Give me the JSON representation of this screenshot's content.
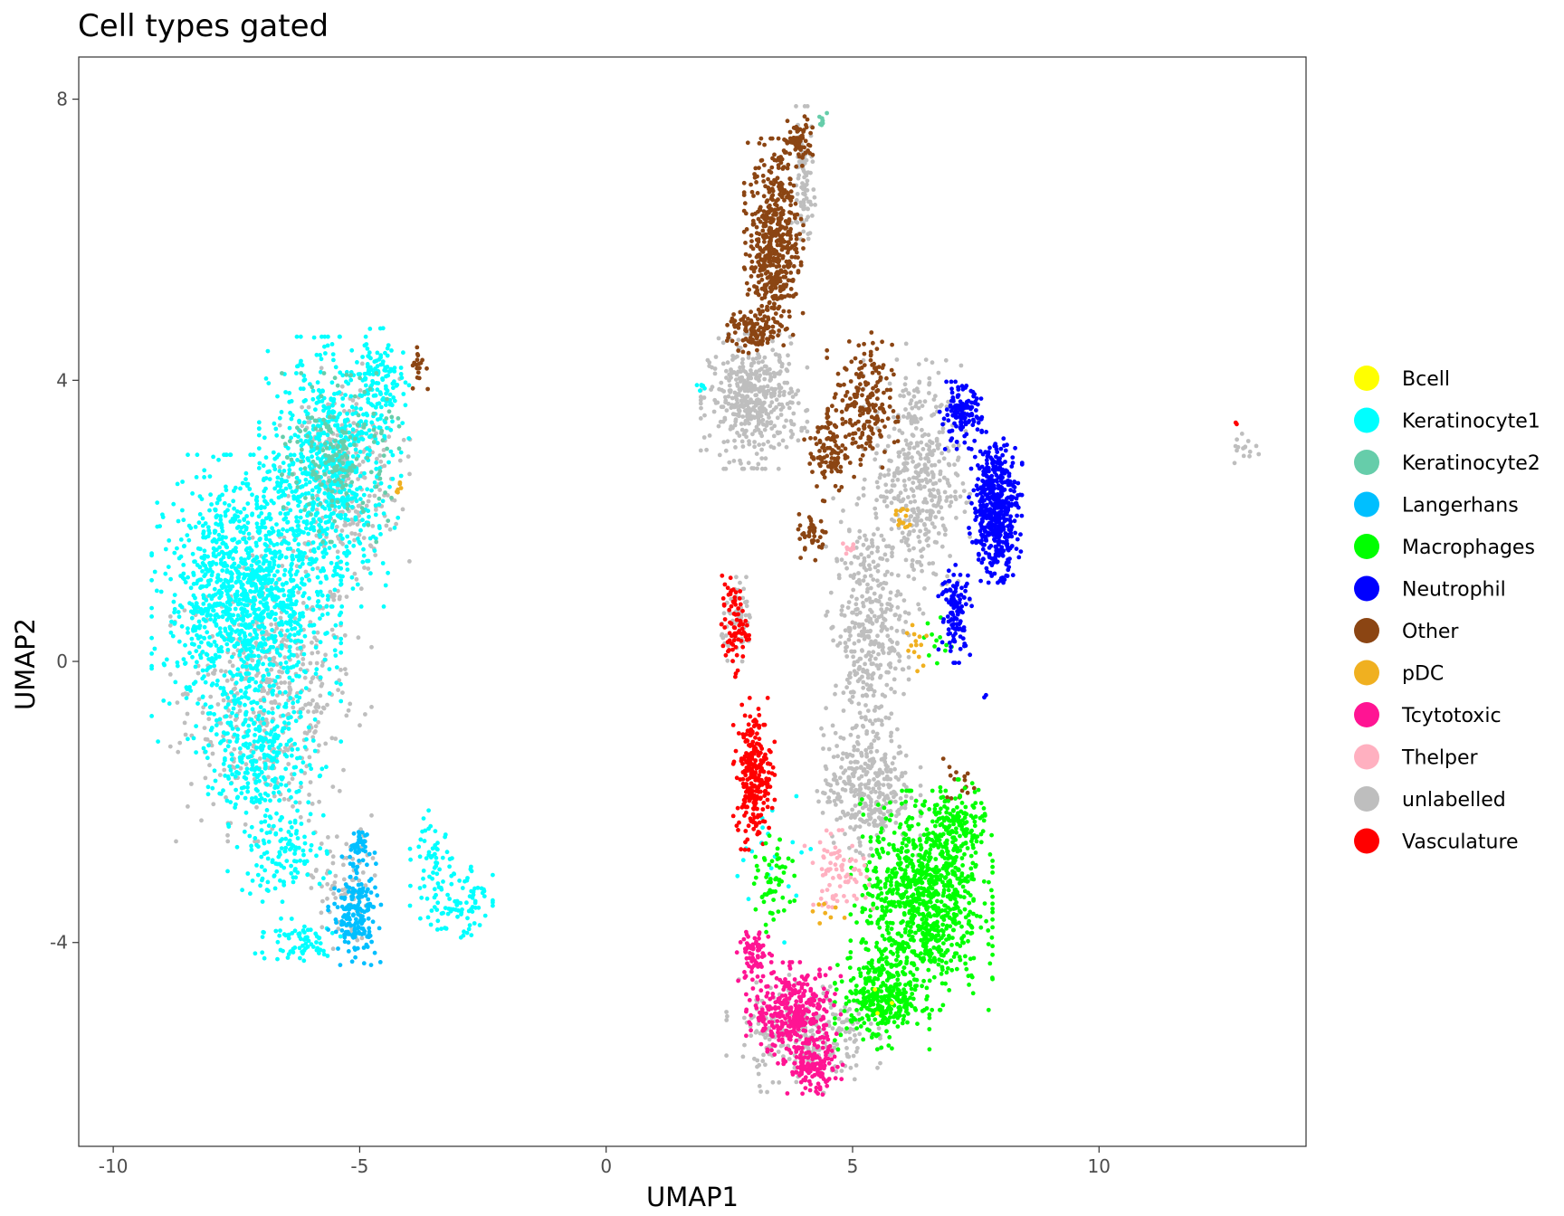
{
  "chart_data": {
    "type": "scatter",
    "title": "Cell types gated",
    "xlabel": "UMAP1",
    "ylabel": "UMAP2",
    "xlim": [
      -10.7,
      14.2
    ],
    "ylim": [
      -6.9,
      8.6
    ],
    "x_ticks": [
      -10,
      -5,
      0,
      5,
      10
    ],
    "y_ticks": [
      -4,
      0,
      4,
      8
    ],
    "x_tick_labels": [
      "-10",
      "-5",
      "0",
      "5",
      "10"
    ],
    "y_tick_labels": [
      "-4",
      "0",
      "4",
      "8"
    ],
    "grid": false,
    "legend_position": "right",
    "colors": {
      "Bcell": "#FFFF00",
      "Keratinocyte1": "#00FFFF",
      "Keratinocyte2": "#66CDAA",
      "Langerhans": "#00BFFF",
      "Macrophages": "#00FF00",
      "Neutrophil": "#0000FF",
      "Other": "#8B4513",
      "pDC": "#F0B020",
      "Tcytotoxic": "#FF1493",
      "Thelper": "#FFB0C0",
      "unlabelled": "#BEBEBE",
      "Vasculature": "#FF0000"
    },
    "series": [
      {
        "name": "Bcell",
        "regions": [
          {
            "cx": 5.5,
            "cy": -4.8,
            "rx": 0.4,
            "ry": 0.3,
            "n": 3
          }
        ]
      },
      {
        "name": "Keratinocyte1",
        "regions": [
          {
            "cx": -7.3,
            "cy": 0.9,
            "rx": 1.6,
            "ry": 1.7,
            "n": 1300
          },
          {
            "cx": -5.6,
            "cy": 2.7,
            "rx": 1.2,
            "ry": 1.6,
            "n": 700
          },
          {
            "cx": -4.6,
            "cy": 3.9,
            "rx": 0.5,
            "ry": 0.7,
            "n": 130
          },
          {
            "cx": -7.0,
            "cy": -1.4,
            "rx": 1.1,
            "ry": 0.8,
            "n": 260
          },
          {
            "cx": -6.6,
            "cy": -2.7,
            "rx": 0.9,
            "ry": 0.6,
            "n": 130
          },
          {
            "cx": -3.5,
            "cy": -2.9,
            "rx": 0.4,
            "ry": 0.9,
            "n": 70
          },
          {
            "cx": -2.9,
            "cy": -3.4,
            "rx": 0.5,
            "ry": 0.6,
            "n": 70
          },
          {
            "cx": -6.3,
            "cy": -4.0,
            "rx": 0.9,
            "ry": 0.3,
            "n": 70
          },
          {
            "cx": 1.9,
            "cy": 3.9,
            "rx": 0.1,
            "ry": 0.1,
            "n": 6
          },
          {
            "cx": 3.4,
            "cy": -2.8,
            "rx": 0.7,
            "ry": 1.0,
            "n": 20
          }
        ]
      },
      {
        "name": "Keratinocyte2",
        "regions": [
          {
            "cx": -5.4,
            "cy": 2.9,
            "rx": 1.0,
            "ry": 1.0,
            "n": 180
          },
          {
            "cx": 4.4,
            "cy": 7.7,
            "rx": 0.1,
            "ry": 0.15,
            "n": 8
          }
        ]
      },
      {
        "name": "Langerhans",
        "regions": [
          {
            "cx": -5.1,
            "cy": -3.6,
            "rx": 0.45,
            "ry": 0.6,
            "n": 170
          },
          {
            "cx": -5.0,
            "cy": -2.7,
            "rx": 0.3,
            "ry": 0.4,
            "n": 40
          }
        ]
      },
      {
        "name": "Macrophages",
        "regions": [
          {
            "cx": 6.4,
            "cy": -3.4,
            "rx": 1.2,
            "ry": 1.3,
            "n": 900
          },
          {
            "cx": 5.6,
            "cy": -4.8,
            "rx": 0.8,
            "ry": 0.6,
            "n": 320
          },
          {
            "cx": 7.1,
            "cy": -2.4,
            "rx": 0.6,
            "ry": 0.6,
            "n": 160
          },
          {
            "cx": 3.4,
            "cy": -3.2,
            "rx": 0.35,
            "ry": 0.6,
            "n": 60
          },
          {
            "cx": 6.7,
            "cy": 0.2,
            "rx": 0.3,
            "ry": 0.4,
            "n": 12
          }
        ]
      },
      {
        "name": "Neutrophil",
        "regions": [
          {
            "cx": 7.9,
            "cy": 2.2,
            "rx": 0.45,
            "ry": 0.9,
            "n": 500
          },
          {
            "cx": 7.2,
            "cy": 3.5,
            "rx": 0.4,
            "ry": 0.4,
            "n": 130
          },
          {
            "cx": 7.1,
            "cy": 0.7,
            "rx": 0.3,
            "ry": 0.6,
            "n": 120
          },
          {
            "cx": 7.7,
            "cy": -0.5,
            "rx": 0.05,
            "ry": 0.05,
            "n": 2
          }
        ]
      },
      {
        "name": "Other",
        "regions": [
          {
            "cx": 3.4,
            "cy": 6.0,
            "rx": 0.5,
            "ry": 1.2,
            "n": 500
          },
          {
            "cx": 3.9,
            "cy": 7.4,
            "rx": 0.3,
            "ry": 0.3,
            "n": 70
          },
          {
            "cx": 3.0,
            "cy": 4.7,
            "rx": 0.5,
            "ry": 0.3,
            "n": 110
          },
          {
            "cx": 5.2,
            "cy": 3.6,
            "rx": 0.6,
            "ry": 0.9,
            "n": 200
          },
          {
            "cx": 4.5,
            "cy": 3.0,
            "rx": 0.4,
            "ry": 0.6,
            "n": 90
          },
          {
            "cx": 4.2,
            "cy": 1.8,
            "rx": 0.3,
            "ry": 0.3,
            "n": 40
          },
          {
            "cx": -3.8,
            "cy": 4.2,
            "rx": 0.15,
            "ry": 0.3,
            "n": 18
          },
          {
            "cx": 7.2,
            "cy": -1.7,
            "rx": 0.3,
            "ry": 0.3,
            "n": 15
          }
        ]
      },
      {
        "name": "pDC",
        "regions": [
          {
            "cx": 6.0,
            "cy": 2.0,
            "rx": 0.15,
            "ry": 0.2,
            "n": 14
          },
          {
            "cx": 6.3,
            "cy": 0.3,
            "rx": 0.2,
            "ry": 0.4,
            "n": 14
          },
          {
            "cx": -4.2,
            "cy": 2.5,
            "rx": 0.1,
            "ry": 0.1,
            "n": 6
          },
          {
            "cx": 4.5,
            "cy": -3.6,
            "rx": 0.3,
            "ry": 0.3,
            "n": 8
          }
        ]
      },
      {
        "name": "Tcytotoxic",
        "regions": [
          {
            "cx": 3.8,
            "cy": -5.0,
            "rx": 0.8,
            "ry": 0.6,
            "n": 360
          },
          {
            "cx": 4.2,
            "cy": -5.8,
            "rx": 0.5,
            "ry": 0.35,
            "n": 130
          },
          {
            "cx": 3.0,
            "cy": -4.2,
            "rx": 0.3,
            "ry": 0.4,
            "n": 70
          }
        ]
      },
      {
        "name": "Thelper",
        "regions": [
          {
            "cx": 4.7,
            "cy": -3.0,
            "rx": 0.6,
            "ry": 0.5,
            "n": 80
          },
          {
            "cx": 5.0,
            "cy": 1.6,
            "rx": 0.3,
            "ry": 0.1,
            "n": 10
          }
        ]
      },
      {
        "name": "unlabelled",
        "regions": [
          {
            "cx": -6.8,
            "cy": -0.4,
            "rx": 1.7,
            "ry": 1.8,
            "n": 500
          },
          {
            "cx": -5.3,
            "cy": 2.6,
            "rx": 1.1,
            "ry": 1.4,
            "n": 260
          },
          {
            "cx": -5.4,
            "cy": -3.2,
            "rx": 0.6,
            "ry": 0.8,
            "n": 80
          },
          {
            "cx": 3.0,
            "cy": 3.7,
            "rx": 0.9,
            "ry": 0.8,
            "n": 450
          },
          {
            "cx": 4.0,
            "cy": 6.7,
            "rx": 0.2,
            "ry": 1.0,
            "n": 90
          },
          {
            "cx": 6.3,
            "cy": 2.6,
            "rx": 0.9,
            "ry": 1.6,
            "n": 450
          },
          {
            "cx": 5.3,
            "cy": 0.4,
            "rx": 0.7,
            "ry": 1.6,
            "n": 350
          },
          {
            "cx": 5.3,
            "cy": -1.8,
            "rx": 0.9,
            "ry": 0.8,
            "n": 330
          },
          {
            "cx": 4.0,
            "cy": -5.3,
            "rx": 1.3,
            "ry": 0.7,
            "n": 260
          },
          {
            "cx": 2.7,
            "cy": 0.6,
            "rx": 0.35,
            "ry": 0.5,
            "n": 60
          },
          {
            "cx": 13.0,
            "cy": 3.0,
            "rx": 0.3,
            "ry": 0.2,
            "n": 15
          }
        ]
      },
      {
        "name": "Vasculature",
        "regions": [
          {
            "cx": 3.0,
            "cy": -1.6,
            "rx": 0.35,
            "ry": 0.9,
            "n": 260
          },
          {
            "cx": 2.6,
            "cy": 0.5,
            "rx": 0.25,
            "ry": 0.6,
            "n": 80
          },
          {
            "cx": 12.8,
            "cy": 3.4,
            "rx": 0.05,
            "ry": 0.05,
            "n": 2
          }
        ]
      }
    ],
    "legend": [
      "Bcell",
      "Keratinocyte1",
      "Keratinocyte2",
      "Langerhans",
      "Macrophages",
      "Neutrophil",
      "Other",
      "pDC",
      "Tcytotoxic",
      "Thelper",
      "unlabelled",
      "Vasculature"
    ]
  }
}
